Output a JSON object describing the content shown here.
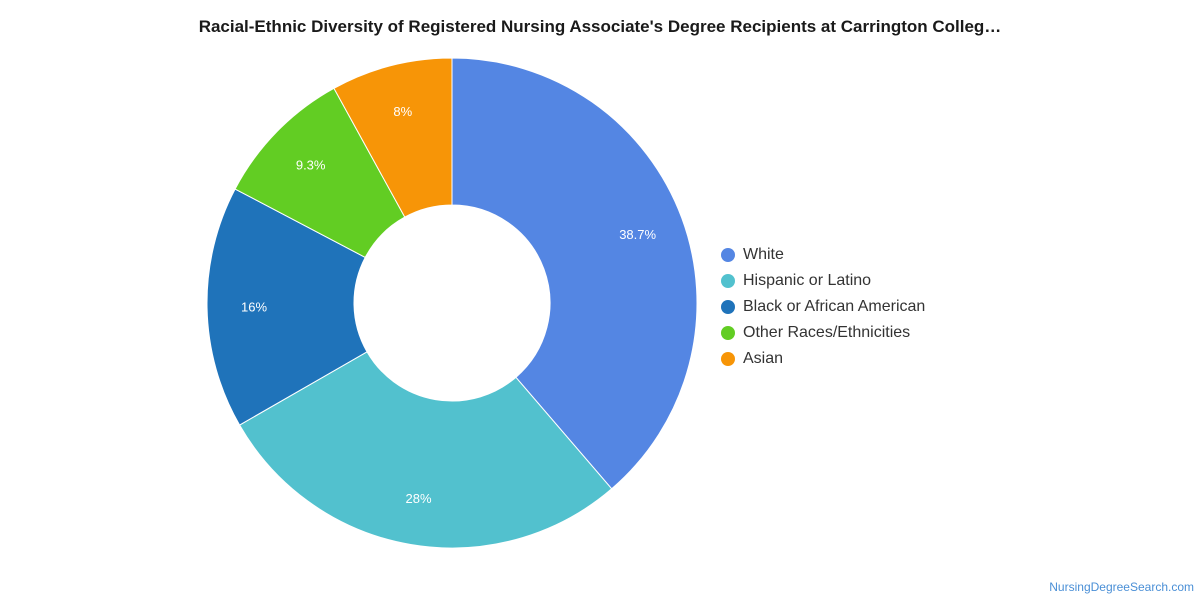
{
  "chart_data": {
    "type": "pie",
    "variant": "donut",
    "title": "Racial-Ethnic Diversity of Registered Nursing Associate's Degree Recipients at Carrington Colleg…",
    "categories": [
      "White",
      "Hispanic or Latino",
      "Black or African American",
      "Other Races/Ethnicities",
      "Asian"
    ],
    "values": [
      38.7,
      28,
      16,
      9.3,
      8
    ],
    "data_labels": [
      "38.7%",
      "28%",
      "16%",
      "9.3%",
      "8%"
    ],
    "colors": [
      "#5486e3",
      "#52c1ce",
      "#1f73ba",
      "#62cd23",
      "#f79507"
    ],
    "legend_position": "right"
  },
  "credit": "NursingDegreeSearch.com"
}
